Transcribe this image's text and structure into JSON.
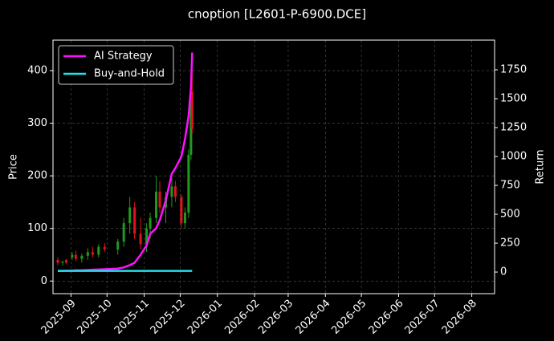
{
  "chart_data": {
    "type": "candlestick",
    "title": "cnoption [L2601-P-6900.DCE]",
    "ylabel": "Price",
    "y2label": "Return",
    "x": [
      "2025-08-21",
      "2025-08-25",
      "2025-08-28",
      "2025-09-02",
      "2025-09-05",
      "2025-09-10",
      "2025-09-15",
      "2025-09-19",
      "2025-09-24",
      "2025-09-29",
      "2025-10-10",
      "2025-10-15",
      "2025-10-20",
      "2025-10-24",
      "2025-10-29",
      "2025-11-03",
      "2025-11-06",
      "2025-11-11",
      "2025-11-14",
      "2025-11-19",
      "2025-11-24",
      "2025-11-27",
      "2025-12-02",
      "2025-12-05",
      "2025-12-08",
      "2025-12-10",
      "2025-12-11"
    ],
    "ohlc": {
      "open": [
        40,
        35,
        40,
        45,
        50,
        42,
        48,
        55,
        50,
        65,
        60,
        75,
        110,
        140,
        90,
        70,
        100,
        120,
        170,
        140,
        160,
        180,
        160,
        110,
        130,
        240,
        360
      ],
      "high": [
        45,
        38,
        42,
        55,
        58,
        52,
        62,
        65,
        70,
        72,
        80,
        120,
        160,
        150,
        120,
        110,
        130,
        200,
        190,
        170,
        200,
        190,
        165,
        140,
        250,
        380,
        400
      ],
      "low": [
        30,
        30,
        32,
        40,
        38,
        35,
        40,
        45,
        45,
        55,
        50,
        65,
        90,
        80,
        60,
        55,
        80,
        110,
        130,
        110,
        140,
        150,
        100,
        100,
        120,
        230,
        280
      ],
      "close": [
        35,
        37,
        35,
        50,
        42,
        48,
        55,
        50,
        65,
        60,
        75,
        110,
        140,
        90,
        70,
        100,
        120,
        170,
        140,
        160,
        180,
        160,
        110,
        130,
        240,
        360,
        290
      ],
      "up_color": "#1f9a1f",
      "down_color": "#e0141e"
    },
    "series": [
      {
        "name": "AI Strategy",
        "color": "#ff10ff",
        "axis": "y2",
        "values": [
          10,
          10,
          12,
          12,
          15,
          15,
          18,
          20,
          22,
          25,
          30,
          40,
          60,
          80,
          150,
          230,
          330,
          380,
          450,
          620,
          850,
          900,
          1000,
          1150,
          1350,
          1600,
          1900
        ]
      },
      {
        "name": "Buy-and-Hold",
        "color": "#20e0e8",
        "axis": "y2",
        "values": [
          10,
          10,
          10,
          10,
          10,
          10,
          10,
          10,
          10,
          10,
          10,
          10,
          10,
          10,
          10,
          10,
          10,
          10,
          10,
          10,
          10,
          10,
          10,
          10,
          10,
          10,
          10
        ]
      }
    ],
    "xlim": [
      "2025-08-17",
      "2026-08-20"
    ],
    "xticks": [
      "2025-09",
      "2025-10",
      "2025-11",
      "2025-12",
      "2026-01",
      "2026-02",
      "2026-03",
      "2026-04",
      "2026-05",
      "2026-06",
      "2026-07",
      "2026-08"
    ],
    "ylim": [
      -24,
      458
    ],
    "yticks": [
      0,
      100,
      200,
      300,
      400
    ],
    "y2lim": [
      -187,
      2007
    ],
    "y2ticks": [
      0,
      250,
      500,
      750,
      1000,
      1250,
      1500,
      1750
    ],
    "grid": true,
    "legend": "upper left"
  }
}
